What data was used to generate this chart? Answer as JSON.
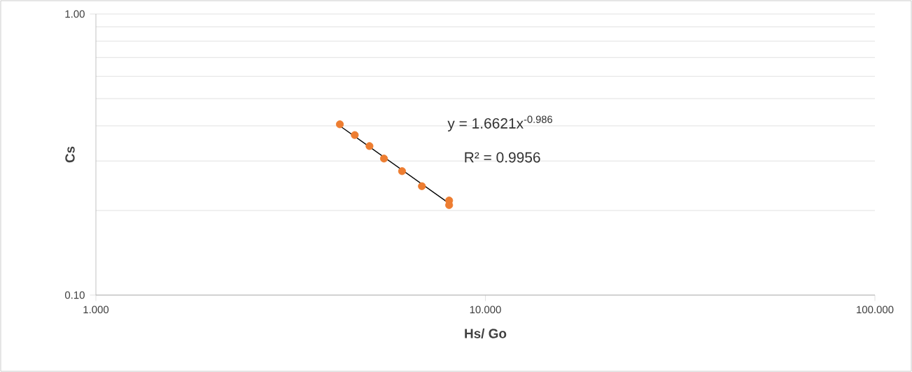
{
  "chart_data": {
    "type": "scatter",
    "xlabel": "Hs/ Go",
    "ylabel": "Cs",
    "series": [
      {
        "color": "#ed7d31",
        "x": [
          4.23,
          4.62,
          5.04,
          5.49,
          6.11,
          6.87,
          8.07,
          8.07
        ],
        "values": [
          0.405,
          0.371,
          0.339,
          0.306,
          0.276,
          0.244,
          0.217,
          0.209
        ]
      },
      {
        "type": "line",
        "marker": "none",
        "color": "#000000",
        "x": [
          4.23,
          8.07
        ],
        "values": [
          0.4,
          0.212
        ]
      }
    ],
    "annotations": [
      "y = 1.6621x$^{-0.986}$",
      "R² = 0.9956"
    ],
    "log": "xy",
    "xlim": [
      1,
      100
    ],
    "ylim": [
      0.1,
      1
    ],
    "xticks": [
      {
        "value": 1,
        "label": "1.000"
      },
      {
        "value": 10,
        "label": "10.000"
      },
      {
        "value": 100,
        "label": "100.000"
      }
    ],
    "yticks": [
      {
        "value": 0.1,
        "label": "0.10"
      },
      {
        "value": 1,
        "label": "1.00"
      }
    ],
    "grid": "y",
    "marker": "circle"
  }
}
